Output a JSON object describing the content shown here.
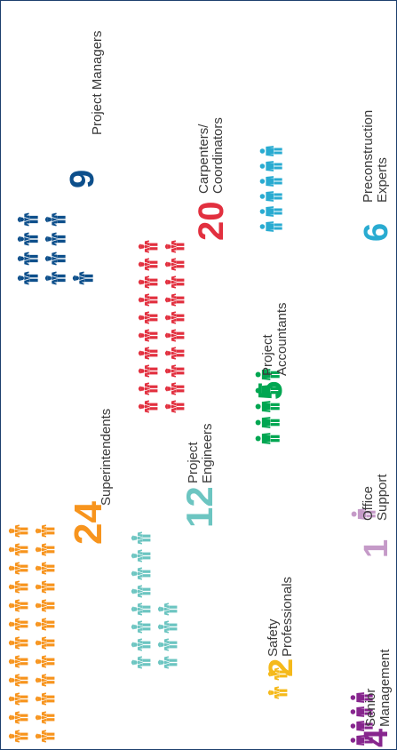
{
  "colors": {
    "frame": "#1d3f6e",
    "label": "#3a3a3a"
  },
  "groups": [
    {
      "key": "superintendents",
      "count": "24",
      "label_lines": [
        "Superintendents"
      ],
      "color": "#f7941d",
      "icon": "hardhat-worker-icon"
    },
    {
      "key": "project_managers",
      "count": "9",
      "label_lines": [
        "Project Managers"
      ],
      "color": "#0d4f8b",
      "icon": "hardhat-worker-icon"
    },
    {
      "key": "project_engineers",
      "count": "12",
      "label_lines": [
        "Project",
        "Engineers"
      ],
      "color": "#6cc5c1",
      "icon": "hardhat-worker-icon"
    },
    {
      "key": "carpenters_coordinators",
      "count": "20",
      "label_lines": [
        "Carpenters/",
        "Coordinators"
      ],
      "color": "#e2303f",
      "icon": "hardhat-worker-icon"
    },
    {
      "key": "safety_professionals",
      "count": "2",
      "label_lines": [
        "Safety",
        "Professionals"
      ],
      "color": "#f5b91a",
      "icon": "hardhat-worker-icon"
    },
    {
      "key": "project_accountants",
      "count": "5",
      "label_lines": [
        "Project",
        "Accountants"
      ],
      "color": "#00a651",
      "icon": "person-icon"
    },
    {
      "key": "preconstruction_experts",
      "count": "6",
      "label_lines": [
        "Preconstruction",
        "Experts"
      ],
      "color": "#29abd1",
      "icon": "person-icon"
    },
    {
      "key": "senior_management",
      "count": "4",
      "label_lines": [
        "Senior",
        "Management"
      ],
      "color": "#87268e",
      "icon": "person-icon"
    },
    {
      "key": "office_support",
      "count": "1",
      "label_lines": [
        "Office",
        "Support"
      ],
      "color": "#c59ac8",
      "icon": "person-icon"
    }
  ]
}
